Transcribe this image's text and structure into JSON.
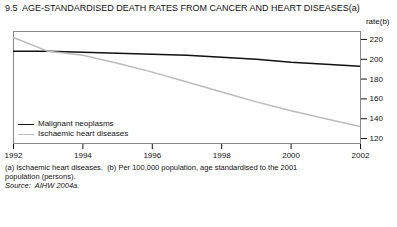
{
  "chart_data": {
    "type": "line",
    "title": "9.5  AGE-STANDARDISED DEATH RATES FROM CANCER AND HEART DISEASES(a)",
    "y_label": "rate(b)",
    "x": [
      1992,
      1993,
      1994,
      1995,
      1996,
      1997,
      1998,
      1999,
      2000,
      2001,
      2002
    ],
    "series": [
      {
        "name": "Malignant neoplasms",
        "color": "#111111",
        "values": [
          208,
          208,
          207,
          206,
          205,
          204,
          202,
          200,
          197,
          195,
          193
        ]
      },
      {
        "name": "Ischaemic heart diseases",
        "color": "#bbbbbb",
        "values": [
          222,
          208,
          204,
          196,
          187,
          177,
          167,
          157,
          148,
          140,
          132
        ]
      }
    ],
    "xlim": [
      1992,
      2002
    ],
    "xticks": [
      1992,
      1994,
      1996,
      1998,
      2000,
      2002
    ],
    "ylim": [
      115,
      228
    ],
    "yticks": [
      120,
      140,
      160,
      180,
      200,
      220
    ],
    "grid": false,
    "legend": "lower left",
    "annotations": [
      "(a) Ischaemic heart diseases.  (b) Per 100,000 population, age standardised to the 2001",
      "population (persons).",
      "Source:  AIHW 2004a."
    ]
  }
}
